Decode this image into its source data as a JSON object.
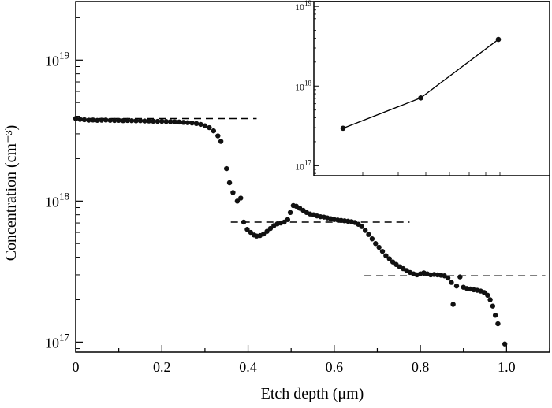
{
  "chart_data": [
    {
      "type": "scatter",
      "xlabel": "Etch depth (μm)",
      "ylabel": "Concentration (cm⁻³)",
      "xlim": [
        0,
        1.1
      ],
      "ylim": [
        8.5e+16,
        2.6e+19
      ],
      "yscale": "log",
      "grid": false,
      "x_ticks": [
        0,
        0.2,
        0.4,
        0.6,
        0.8,
        1.0
      ],
      "x_tick_labels": [
        "0",
        "0.2",
        "0.4",
        "0.6",
        "0.8",
        "1.0"
      ],
      "y_ticks": [
        1e+17,
        1e+18,
        1e+19
      ],
      "y_tick_labels": [
        {
          "base": "10",
          "exp": "17"
        },
        {
          "base": "10",
          "exp": "18"
        },
        {
          "base": "10",
          "exp": "19"
        }
      ],
      "series": [
        {
          "points": [
            [
              0.0,
              3.85e+18
            ],
            [
              0.01,
              3.8e+18
            ],
            [
              0.02,
              3.78e+18
            ],
            [
              0.03,
              3.75e+18
            ],
            [
              0.04,
              3.76e+18
            ],
            [
              0.05,
              3.74e+18
            ],
            [
              0.06,
              3.75e+18
            ],
            [
              0.07,
              3.76e+18
            ],
            [
              0.08,
              3.74e+18
            ],
            [
              0.09,
              3.73e+18
            ],
            [
              0.1,
              3.74e+18
            ],
            [
              0.11,
              3.72e+18
            ],
            [
              0.12,
              3.73e+18
            ],
            [
              0.13,
              3.72e+18
            ],
            [
              0.14,
              3.71e+18
            ],
            [
              0.15,
              3.72e+18
            ],
            [
              0.16,
              3.7e+18
            ],
            [
              0.17,
              3.7e+18
            ],
            [
              0.18,
              3.69e+18
            ],
            [
              0.19,
              3.68e+18
            ],
            [
              0.2,
              3.68e+18
            ],
            [
              0.21,
              3.67e+18
            ],
            [
              0.22,
              3.66e+18
            ],
            [
              0.23,
              3.65e+18
            ],
            [
              0.24,
              3.64e+18
            ],
            [
              0.25,
              3.62e+18
            ],
            [
              0.26,
              3.6e+18
            ],
            [
              0.27,
              3.58e+18
            ],
            [
              0.28,
              3.55e+18
            ],
            [
              0.29,
              3.5e+18
            ],
            [
              0.3,
              3.42e+18
            ],
            [
              0.31,
              3.32e+18
            ],
            [
              0.32,
              3.15e+18
            ],
            [
              0.33,
              2.9e+18
            ],
            [
              0.337,
              2.65e+18
            ],
            [
              0.35,
              1.7e+18
            ],
            [
              0.357,
              1.35e+18
            ],
            [
              0.365,
              1.15e+18
            ],
            [
              0.375,
              1e+18
            ],
            [
              0.383,
              1.05e+18
            ],
            [
              0.39,
              7.1e+17
            ],
            [
              0.398,
              6.3e+17
            ],
            [
              0.406,
              6e+17
            ],
            [
              0.414,
              5.75e+17
            ],
            [
              0.42,
              5.65e+17
            ],
            [
              0.428,
              5.7e+17
            ],
            [
              0.436,
              5.85e+17
            ],
            [
              0.444,
              6.1e+17
            ],
            [
              0.452,
              6.4e+17
            ],
            [
              0.46,
              6.7e+17
            ],
            [
              0.468,
              6.9e+17
            ],
            [
              0.476,
              7e+17
            ],
            [
              0.484,
              7.1e+17
            ],
            [
              0.492,
              7.4e+17
            ],
            [
              0.498,
              8.3e+17
            ],
            [
              0.505,
              9.3e+17
            ],
            [
              0.512,
              9.2e+17
            ],
            [
              0.52,
              8.9e+17
            ],
            [
              0.528,
              8.6e+17
            ],
            [
              0.536,
              8.3e+17
            ],
            [
              0.544,
              8.1e+17
            ],
            [
              0.552,
              8e+17
            ],
            [
              0.56,
              7.85e+17
            ],
            [
              0.568,
              7.75e+17
            ],
            [
              0.576,
              7.7e+17
            ],
            [
              0.584,
              7.6e+17
            ],
            [
              0.592,
              7.5e+17
            ],
            [
              0.6,
              7.4e+17
            ],
            [
              0.608,
              7.35e+17
            ],
            [
              0.616,
              7.3e+17
            ],
            [
              0.624,
              7.25e+17
            ],
            [
              0.632,
              7.2e+17
            ],
            [
              0.64,
              7.15e+17
            ],
            [
              0.648,
              7.05e+17
            ],
            [
              0.656,
              6.85e+17
            ],
            [
              0.664,
              6.6e+17
            ],
            [
              0.672,
              6.2e+17
            ],
            [
              0.68,
              5.8e+17
            ],
            [
              0.688,
              5.4e+17
            ],
            [
              0.696,
              5e+17
            ],
            [
              0.704,
              4.7e+17
            ],
            [
              0.712,
              4.4e+17
            ],
            [
              0.72,
              4.1e+17
            ],
            [
              0.728,
              3.9e+17
            ],
            [
              0.736,
              3.7e+17
            ],
            [
              0.744,
              3.55e+17
            ],
            [
              0.752,
              3.42e+17
            ],
            [
              0.76,
              3.32e+17
            ],
            [
              0.768,
              3.22e+17
            ],
            [
              0.776,
              3.12e+17
            ],
            [
              0.784,
              3.05e+17
            ],
            [
              0.792,
              3e+17
            ],
            [
              0.8,
              3.05e+17
            ],
            [
              0.808,
              3.1e+17
            ],
            [
              0.816,
              3.05e+17
            ],
            [
              0.824,
              3e+17
            ],
            [
              0.832,
              3.02e+17
            ],
            [
              0.84,
              3e+17
            ],
            [
              0.848,
              2.98e+17
            ],
            [
              0.856,
              2.95e+17
            ],
            [
              0.864,
              2.85e+17
            ],
            [
              0.872,
              2.65e+17
            ],
            [
              0.876,
              1.85e+17
            ],
            [
              0.884,
              2.5e+17
            ],
            [
              0.892,
              2.9e+17
            ],
            [
              0.9,
              2.45e+17
            ],
            [
              0.908,
              2.4e+17
            ],
            [
              0.916,
              2.38e+17
            ],
            [
              0.924,
              2.35e+17
            ],
            [
              0.932,
              2.33e+17
            ],
            [
              0.94,
              2.3e+17
            ],
            [
              0.948,
              2.25e+17
            ],
            [
              0.956,
              2.15e+17
            ],
            [
              0.962,
              2e+17
            ],
            [
              0.968,
              1.8e+17
            ],
            [
              0.974,
              1.55e+17
            ],
            [
              0.98,
              1.35e+17
            ],
            [
              0.996,
              9.7e+16
            ]
          ]
        }
      ],
      "reference_lines": [
        {
          "y": 3.85e+18,
          "x_range": [
            0.0,
            0.42
          ]
        },
        {
          "y": 7.1e+17,
          "x_range": [
            0.36,
            0.775
          ]
        },
        {
          "y": 2.95e+17,
          "x_range": [
            0.67,
            1.09
          ]
        }
      ]
    },
    {
      "type": "line",
      "yscale": "log",
      "ylim": [
        7.5e+16,
        1.15e+19
      ],
      "y_ticks": [
        1e+17,
        1e+18,
        1e+19
      ],
      "y_tick_labels": [
        {
          "base": "10",
          "exp": "17"
        },
        {
          "base": "10",
          "exp": "18"
        },
        {
          "base": "10",
          "exp": "19"
        }
      ],
      "series": [
        {
          "points": [
            {
              "x": 1,
              "y": 2.95e+17
            },
            {
              "x": 2,
              "y": 7.1e+17
            },
            {
              "x": 3,
              "y": 3.85e+18
            }
          ]
        }
      ]
    }
  ]
}
